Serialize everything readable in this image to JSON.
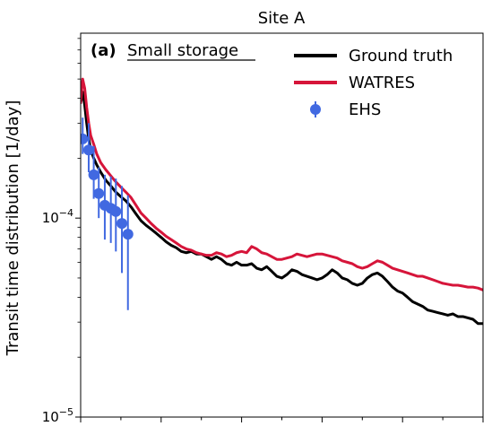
{
  "chart_data": {
    "type": "line",
    "title": "Site A",
    "panel_label": "(a)",
    "panel_title": "Small storage",
    "ylabel": "Transit time distribution [1/day]",
    "xlabel": "",
    "y_scale": "log",
    "ylim": [
      1e-05,
      0.00085
    ],
    "xlim": [
      0,
      400
    ],
    "y_major_ticks": [
      {
        "value": 1e-05,
        "base": "10",
        "exp": "−5"
      },
      {
        "value": 0.0001,
        "base": "10",
        "exp": "−4"
      }
    ],
    "x_ticks": [
      0,
      40,
      80,
      120,
      160,
      200,
      240,
      280,
      320,
      360,
      400
    ],
    "legend_position": "top-right",
    "series": [
      {
        "name": "Ground truth",
        "style": "line",
        "color": "#000000",
        "points": [
          [
            0,
            0.00038
          ],
          [
            2,
            0.00043
          ],
          [
            4,
            0.00037
          ],
          [
            6,
            0.0003
          ],
          [
            8,
            0.00025
          ],
          [
            10,
            0.00022
          ],
          [
            13,
            0.0002
          ],
          [
            16,
            0.000185
          ],
          [
            20,
            0.00017
          ],
          [
            25,
            0.000155
          ],
          [
            30,
            0.000145
          ],
          [
            35,
            0.000135
          ],
          [
            40,
            0.000128
          ],
          [
            45,
            0.000122
          ],
          [
            50,
            0.000114
          ],
          [
            55,
            0.000105
          ],
          [
            60,
            9.7e-05
          ],
          [
            65,
            9.2e-05
          ],
          [
            70,
            8.8e-05
          ],
          [
            75,
            8.4e-05
          ],
          [
            80,
            8e-05
          ],
          [
            85,
            7.6e-05
          ],
          [
            90,
            7.3e-05
          ],
          [
            95,
            7.1e-05
          ],
          [
            100,
            6.8e-05
          ],
          [
            105,
            6.7e-05
          ],
          [
            110,
            6.8e-05
          ],
          [
            115,
            6.6e-05
          ],
          [
            120,
            6.6e-05
          ],
          [
            125,
            6.4e-05
          ],
          [
            130,
            6.2e-05
          ],
          [
            135,
            6.4e-05
          ],
          [
            140,
            6.2e-05
          ],
          [
            145,
            5.9e-05
          ],
          [
            150,
            5.8e-05
          ],
          [
            155,
            6e-05
          ],
          [
            160,
            5.8e-05
          ],
          [
            165,
            5.8e-05
          ],
          [
            170,
            5.9e-05
          ],
          [
            175,
            5.6e-05
          ],
          [
            180,
            5.5e-05
          ],
          [
            185,
            5.7e-05
          ],
          [
            190,
            5.4e-05
          ],
          [
            195,
            5.1e-05
          ],
          [
            200,
            5e-05
          ],
          [
            205,
            5.2e-05
          ],
          [
            210,
            5.5e-05
          ],
          [
            215,
            5.4e-05
          ],
          [
            220,
            5.2e-05
          ],
          [
            225,
            5.1e-05
          ],
          [
            230,
            5e-05
          ],
          [
            235,
            4.9e-05
          ],
          [
            240,
            5e-05
          ],
          [
            245,
            5.2e-05
          ],
          [
            250,
            5.5e-05
          ],
          [
            255,
            5.3e-05
          ],
          [
            260,
            5e-05
          ],
          [
            265,
            4.9e-05
          ],
          [
            270,
            4.7e-05
          ],
          [
            275,
            4.6e-05
          ],
          [
            280,
            4.7e-05
          ],
          [
            285,
            5e-05
          ],
          [
            290,
            5.2e-05
          ],
          [
            295,
            5.3e-05
          ],
          [
            300,
            5.1e-05
          ],
          [
            305,
            4.8e-05
          ],
          [
            310,
            4.5e-05
          ],
          [
            315,
            4.3e-05
          ],
          [
            320,
            4.2e-05
          ],
          [
            325,
            4e-05
          ],
          [
            330,
            3.8e-05
          ],
          [
            335,
            3.7e-05
          ],
          [
            340,
            3.6e-05
          ],
          [
            345,
            3.45e-05
          ],
          [
            350,
            3.4e-05
          ],
          [
            355,
            3.35e-05
          ],
          [
            360,
            3.3e-05
          ],
          [
            365,
            3.25e-05
          ],
          [
            370,
            3.3e-05
          ],
          [
            375,
            3.2e-05
          ],
          [
            380,
            3.2e-05
          ],
          [
            385,
            3.15e-05
          ],
          [
            390,
            3.1e-05
          ],
          [
            395,
            2.95e-05
          ],
          [
            400,
            2.95e-05
          ]
        ]
      },
      {
        "name": "WATRES",
        "style": "line",
        "color": "#d6153a",
        "points": [
          [
            0,
            0.00038
          ],
          [
            2,
            0.0005
          ],
          [
            4,
            0.00045
          ],
          [
            6,
            0.00036
          ],
          [
            8,
            0.0003
          ],
          [
            10,
            0.00026
          ],
          [
            13,
            0.000235
          ],
          [
            16,
            0.00021
          ],
          [
            20,
            0.00019
          ],
          [
            25,
            0.000175
          ],
          [
            30,
            0.000163
          ],
          [
            35,
            0.000152
          ],
          [
            40,
            0.000143
          ],
          [
            45,
            0.000135
          ],
          [
            50,
            0.000127
          ],
          [
            55,
            0.000116
          ],
          [
            60,
            0.000106
          ],
          [
            65,
            0.0001
          ],
          [
            70,
            9.4e-05
          ],
          [
            75,
            8.9e-05
          ],
          [
            80,
            8.5e-05
          ],
          [
            85,
            8.1e-05
          ],
          [
            90,
            7.8e-05
          ],
          [
            95,
            7.5e-05
          ],
          [
            100,
            7.2e-05
          ],
          [
            105,
            7e-05
          ],
          [
            110,
            6.9e-05
          ],
          [
            115,
            6.7e-05
          ],
          [
            120,
            6.6e-05
          ],
          [
            125,
            6.5e-05
          ],
          [
            130,
            6.5e-05
          ],
          [
            135,
            6.7e-05
          ],
          [
            140,
            6.6e-05
          ],
          [
            145,
            6.4e-05
          ],
          [
            150,
            6.5e-05
          ],
          [
            155,
            6.7e-05
          ],
          [
            160,
            6.8e-05
          ],
          [
            165,
            6.7e-05
          ],
          [
            170,
            7.2e-05
          ],
          [
            175,
            7e-05
          ],
          [
            180,
            6.7e-05
          ],
          [
            185,
            6.6e-05
          ],
          [
            190,
            6.4e-05
          ],
          [
            195,
            6.2e-05
          ],
          [
            200,
            6.2e-05
          ],
          [
            205,
            6.3e-05
          ],
          [
            210,
            6.4e-05
          ],
          [
            215,
            6.6e-05
          ],
          [
            220,
            6.5e-05
          ],
          [
            225,
            6.4e-05
          ],
          [
            230,
            6.5e-05
          ],
          [
            235,
            6.6e-05
          ],
          [
            240,
            6.6e-05
          ],
          [
            245,
            6.5e-05
          ],
          [
            250,
            6.4e-05
          ],
          [
            255,
            6.3e-05
          ],
          [
            260,
            6.1e-05
          ],
          [
            265,
            6e-05
          ],
          [
            270,
            5.9e-05
          ],
          [
            275,
            5.7e-05
          ],
          [
            280,
            5.6e-05
          ],
          [
            285,
            5.7e-05
          ],
          [
            290,
            5.9e-05
          ],
          [
            295,
            6.1e-05
          ],
          [
            300,
            6e-05
          ],
          [
            305,
            5.8e-05
          ],
          [
            310,
            5.6e-05
          ],
          [
            315,
            5.5e-05
          ],
          [
            320,
            5.4e-05
          ],
          [
            325,
            5.3e-05
          ],
          [
            330,
            5.2e-05
          ],
          [
            335,
            5.1e-05
          ],
          [
            340,
            5.1e-05
          ],
          [
            345,
            5e-05
          ],
          [
            350,
            4.9e-05
          ],
          [
            355,
            4.8e-05
          ],
          [
            360,
            4.7e-05
          ],
          [
            365,
            4.65e-05
          ],
          [
            370,
            4.6e-05
          ],
          [
            375,
            4.6e-05
          ],
          [
            380,
            4.55e-05
          ],
          [
            385,
            4.5e-05
          ],
          [
            390,
            4.5e-05
          ],
          [
            395,
            4.45e-05
          ],
          [
            400,
            4.35e-05
          ]
        ]
      },
      {
        "name": "EHS",
        "style": "errorbar",
        "color": "#4169e1",
        "points": [
          {
            "x": 2,
            "y": 0.00025,
            "lo": 0.00021,
            "hi": 0.00032
          },
          {
            "x": 8,
            "y": 0.00022,
            "lo": 0.00017,
            "hi": 0.0003
          },
          {
            "x": 13,
            "y": 0.000165,
            "lo": 0.000125,
            "hi": 0.00023
          },
          {
            "x": 18,
            "y": 0.000133,
            "lo": 0.0001,
            "hi": 0.00018
          },
          {
            "x": 24,
            "y": 0.000116,
            "lo": 7.8e-05,
            "hi": 0.000165
          },
          {
            "x": 30,
            "y": 0.000112,
            "lo": 7.5e-05,
            "hi": 0.000162
          },
          {
            "x": 35,
            "y": 0.000108,
            "lo": 6.8e-05,
            "hi": 0.000158
          },
          {
            "x": 41,
            "y": 9.4e-05,
            "lo": 5.3e-05,
            "hi": 0.000145
          },
          {
            "x": 47,
            "y": 8.3e-05,
            "lo": 3.45e-05,
            "hi": 0.00013
          }
        ]
      }
    ]
  }
}
